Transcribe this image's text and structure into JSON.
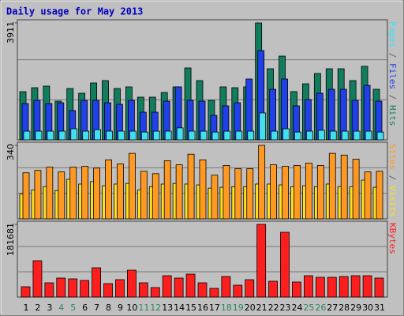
{
  "chart_data": [
    {
      "type": "bar",
      "title": "Daily usage for May 2013",
      "legend_separator": " / ",
      "series": [
        {
          "name": "Hits",
          "color": "#127d5e",
          "values": [
            1612,
            1744,
            1797,
            1295,
            1718,
            1559,
            1903,
            1982,
            1718,
            1771,
            1427,
            1427,
            1586,
            1771,
            2405,
            1982,
            1321,
            1771,
            1744,
            1771,
            3911,
            2378,
            2801,
            1612,
            1876,
            2220,
            2378,
            2378,
            1982,
            2458,
            1691
          ]
        },
        {
          "name": "Files",
          "color": "#2040e8",
          "values": [
            1216,
            1321,
            1216,
            1242,
            978,
            1321,
            1321,
            1242,
            1189,
            1321,
            925,
            925,
            1295,
            1771,
            1321,
            1295,
            819,
            1136,
            1242,
            2035,
            2986,
            1691,
            2035,
            1136,
            1348,
            1559,
            1691,
            1691,
            1321,
            1823,
            1295
          ]
        },
        {
          "name": "Pages",
          "color": "#40e0f0",
          "values": [
            290,
            290,
            290,
            290,
            370,
            290,
            340,
            290,
            290,
            290,
            260,
            290,
            290,
            400,
            290,
            290,
            260,
            290,
            290,
            290,
            900,
            290,
            370,
            260,
            290,
            320,
            290,
            290,
            290,
            290,
            260
          ]
        }
      ],
      "ylim": [
        0,
        3911
      ],
      "yticks": [
        3911
      ],
      "grid_divisions": 3
    },
    {
      "type": "bar",
      "legend_separator": " / ",
      "series": [
        {
          "name": "Visits",
          "color": "#ffe020",
          "values": [
            116,
            134,
            149,
            131,
            183,
            161,
            172,
            153,
            161,
            164,
            134,
            149,
            161,
            164,
            161,
            157,
            142,
            146,
            149,
            149,
            161,
            161,
            157,
            149,
            153,
            149,
            161,
            149,
            149,
            179,
            146
          ]
        },
        {
          "name": "Sites",
          "color": "#ff9922",
          "values": [
            213,
            224,
            239,
            217,
            239,
            243,
            235,
            273,
            254,
            303,
            220,
            209,
            269,
            250,
            299,
            273,
            202,
            247,
            232,
            232,
            340,
            250,
            243,
            247,
            258,
            247,
            303,
            295,
            276,
            217,
            220
          ]
        }
      ],
      "ylim": [
        0,
        340
      ],
      "yticks": [
        340
      ],
      "grid_divisions": 3
    },
    {
      "type": "bar",
      "categories": [
        "1",
        "2",
        "3",
        "4",
        "5",
        "6",
        "7",
        "8",
        "9",
        "10",
        "11",
        "12",
        "13",
        "14",
        "15",
        "16",
        "17",
        "18",
        "19",
        "20",
        "21",
        "22",
        "23",
        "24",
        "25",
        "26",
        "27",
        "28",
        "29",
        "30",
        "31"
      ],
      "weekend": [
        false,
        false,
        false,
        true,
        true,
        false,
        false,
        false,
        false,
        false,
        true,
        true,
        false,
        false,
        false,
        false,
        false,
        true,
        true,
        false,
        false,
        false,
        false,
        false,
        true,
        true,
        false,
        false,
        false,
        false,
        false
      ],
      "weekday_label_color": "#000000",
      "weekend_label_color": "#2a8a5a",
      "series": [
        {
          "name": "KBytes",
          "color": "#ff1e1e",
          "values": [
            25673,
            90840,
            35546,
            47395,
            45420,
            41471,
            73068,
            33572,
            43445,
            67143,
            35546,
            23698,
            53319,
            47395,
            57269,
            35546,
            21723,
            51345,
            29622,
            43445,
            181681,
            39496,
            161933,
            37521,
            53319,
            49370,
            49370,
            51345,
            53319,
            53319,
            47395
          ]
        }
      ],
      "ylim": [
        0,
        181681
      ],
      "yticks": [
        181681
      ],
      "grid_divisions": 3
    }
  ]
}
